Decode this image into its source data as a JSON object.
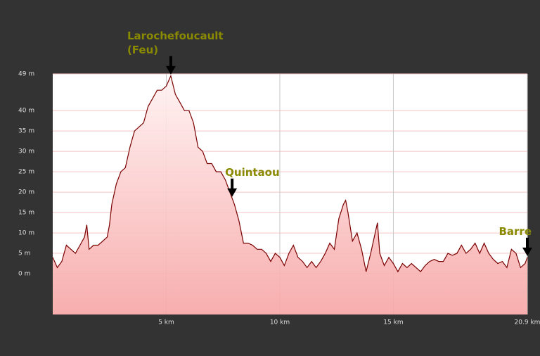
{
  "chart_data": {
    "type": "area",
    "x": [
      0,
      0.2,
      0.4,
      0.6,
      0.8,
      1.0,
      1.2,
      1.4,
      1.5,
      1.6,
      1.8,
      2.0,
      2.2,
      2.4,
      2.5,
      2.6,
      2.8,
      3.0,
      3.2,
      3.4,
      3.6,
      3.8,
      4.0,
      4.2,
      4.4,
      4.6,
      4.8,
      5.0,
      5.2,
      5.4,
      5.6,
      5.8,
      6.0,
      6.2,
      6.4,
      6.6,
      6.8,
      7.0,
      7.2,
      7.4,
      7.6,
      7.8,
      8.0,
      8.2,
      8.4,
      8.6,
      8.8,
      9.0,
      9.2,
      9.4,
      9.6,
      9.8,
      10.0,
      10.2,
      10.4,
      10.6,
      10.8,
      11.0,
      11.2,
      11.4,
      11.6,
      11.8,
      12.0,
      12.2,
      12.4,
      12.6,
      12.8,
      12.9,
      13.0,
      13.2,
      13.4,
      13.6,
      13.8,
      14.0,
      14.2,
      14.3,
      14.4,
      14.6,
      14.8,
      15.0,
      15.2,
      15.4,
      15.6,
      15.8,
      16.0,
      16.2,
      16.4,
      16.6,
      16.8,
      17.0,
      17.2,
      17.4,
      17.6,
      17.8,
      18.0,
      18.2,
      18.4,
      18.6,
      18.8,
      19.0,
      19.2,
      19.4,
      19.6,
      19.8,
      20.0,
      20.2,
      20.4,
      20.6,
      20.8,
      20.9
    ],
    "series": [
      {
        "color": "#7a0000",
        "values": [
          4,
          1.5,
          3,
          7,
          6,
          5,
          7,
          9,
          12,
          6,
          7,
          7,
          8,
          9,
          12,
          17,
          22,
          25,
          26,
          31,
          35,
          36,
          37,
          41,
          43,
          45,
          45,
          46,
          48.5,
          44,
          42,
          40,
          40,
          37,
          31,
          30,
          27,
          27,
          25,
          25,
          23,
          20,
          17,
          13,
          7.5,
          7.5,
          7,
          6,
          6,
          5,
          3,
          5,
          4,
          2,
          5,
          7,
          4,
          3,
          1.5,
          3,
          1.5,
          3,
          5,
          7.5,
          6,
          13.5,
          17,
          18,
          15,
          8,
          10,
          6,
          0.5,
          5,
          10,
          12.5,
          5,
          2,
          4,
          2.5,
          0.5,
          2.5,
          1.5,
          2.5,
          1.5,
          0.5,
          2,
          3,
          3.5,
          3,
          3,
          5,
          4.5,
          5,
          7,
          5,
          6,
          7.5,
          5,
          7.5,
          5,
          3.5,
          2.5,
          3,
          1.5,
          6,
          5,
          1.5,
          2.5,
          4
        ]
      }
    ],
    "fill": "#f7a5a5",
    "xlim": [
      0,
      20.9
    ],
    "ylim": [
      -10,
      49
    ],
    "xticks": [
      {
        "value": 5,
        "label": "5 km"
      },
      {
        "value": 10,
        "label": "10 km"
      },
      {
        "value": 15,
        "label": "15 km"
      },
      {
        "value": 20.9,
        "label": "20.9 km"
      }
    ],
    "yticks": [
      {
        "value": 0,
        "label": "0 m"
      },
      {
        "value": 5,
        "label": "5 m"
      },
      {
        "value": 10,
        "label": "10 m"
      },
      {
        "value": 15,
        "label": "15 m"
      },
      {
        "value": 20,
        "label": "20 m"
      },
      {
        "value": 25,
        "label": "25 m"
      },
      {
        "value": 30,
        "label": "30 m"
      },
      {
        "value": 35,
        "label": "35 m"
      },
      {
        "value": 40,
        "label": "40 m"
      },
      {
        "value": 49,
        "label": "49 m"
      }
    ],
    "grid": true,
    "annotations": [
      {
        "lines": [
          "Larochefoucault",
          "(Feu)"
        ],
        "x": 5.2,
        "y": 48.5
      },
      {
        "lines": [
          "Quintaou"
        ],
        "x": 7.9,
        "y": 18.5
      },
      {
        "lines": [
          "Barre"
        ],
        "x": 20.9,
        "y": 4
      }
    ]
  }
}
